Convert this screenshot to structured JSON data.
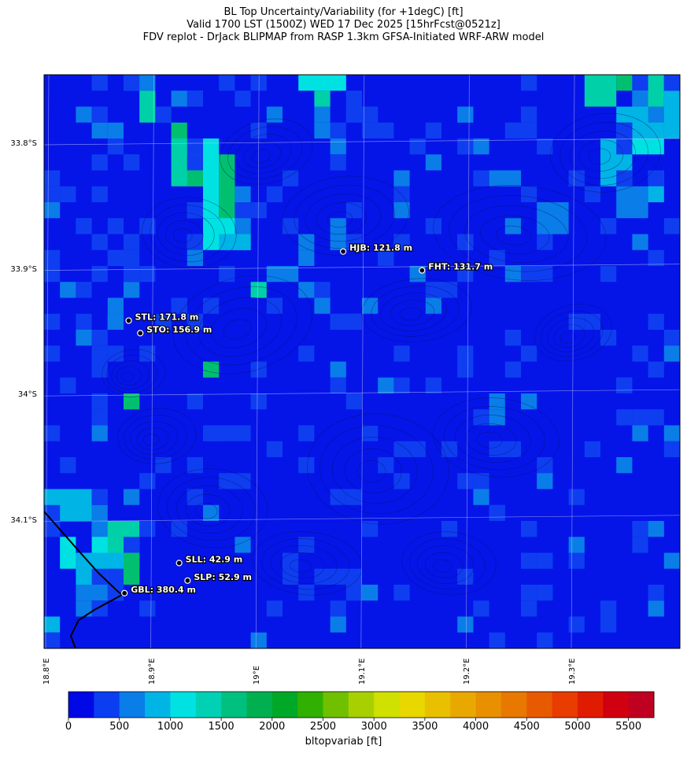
{
  "title": {
    "line1": "BL Top Uncertainty/Variability (for +1degC) [ft]",
    "line2": "Valid 1700 LST (1500Z) WED 17 Dec 2025 [15hrFcst@0521z]",
    "line3": "FDV replot - DrJack BLIPMAP from RASP 1.3km GFSA-Initiated WRF-ARW model"
  },
  "map": {
    "lat_labels": [
      "33.8°S",
      "33.9°S",
      "34°S",
      "34.1°S"
    ],
    "lon_labels": [
      "18.8°E",
      "18.9°E",
      "19°E",
      "19.1°E",
      "19.2°E",
      "19.3°E"
    ],
    "stations": [
      {
        "code": "HJB",
        "label": "HJB: 121.8 m",
        "lon": 19.08,
        "lat": -33.885
      },
      {
        "code": "FHT",
        "label": "FHT: 131.7 m",
        "lon": 19.155,
        "lat": -33.9
      },
      {
        "code": "STL",
        "label": "STL: 171.8 m",
        "lon": 18.876,
        "lat": -33.94
      },
      {
        "code": "STO",
        "label": "STO: 156.9 m",
        "lon": 18.887,
        "lat": -33.95
      },
      {
        "code": "SLL",
        "label": "SLL: 42.9 m",
        "lon": 18.924,
        "lat": -34.133
      },
      {
        "code": "SLP",
        "label": "SLP: 52.9 m",
        "lon": 18.932,
        "lat": -34.147
      },
      {
        "code": "GBL",
        "label": "GBL: 380.4 m",
        "lon": 18.872,
        "lat": -34.157
      }
    ],
    "colors": {
      "background": "#0515e8",
      "blue2": "#0f3ef0",
      "blue3": "#0a7de8",
      "cyan": "#00b4e6",
      "aqua": "#00e2e2",
      "teal": "#00d0a8",
      "green": "#00c070"
    }
  },
  "colorbar": {
    "label": "bltopvariab [ft]",
    "ticks": [
      "0",
      "500",
      "1000",
      "1500",
      "2000",
      "2500",
      "3000",
      "3500",
      "4000",
      "4500",
      "5000",
      "5500"
    ],
    "colors": [
      "#0008e6",
      "#0a3ef0",
      "#0a7de8",
      "#00b4e6",
      "#00e2e2",
      "#00d0b4",
      "#00c080",
      "#00b050",
      "#00a828",
      "#30b000",
      "#70c000",
      "#a8d000",
      "#d0e000",
      "#e8d800",
      "#e8c000",
      "#e8a800",
      "#e89000",
      "#e87800",
      "#e85a00",
      "#e83c00",
      "#e01c00",
      "#d00010",
      "#c00020"
    ]
  }
}
